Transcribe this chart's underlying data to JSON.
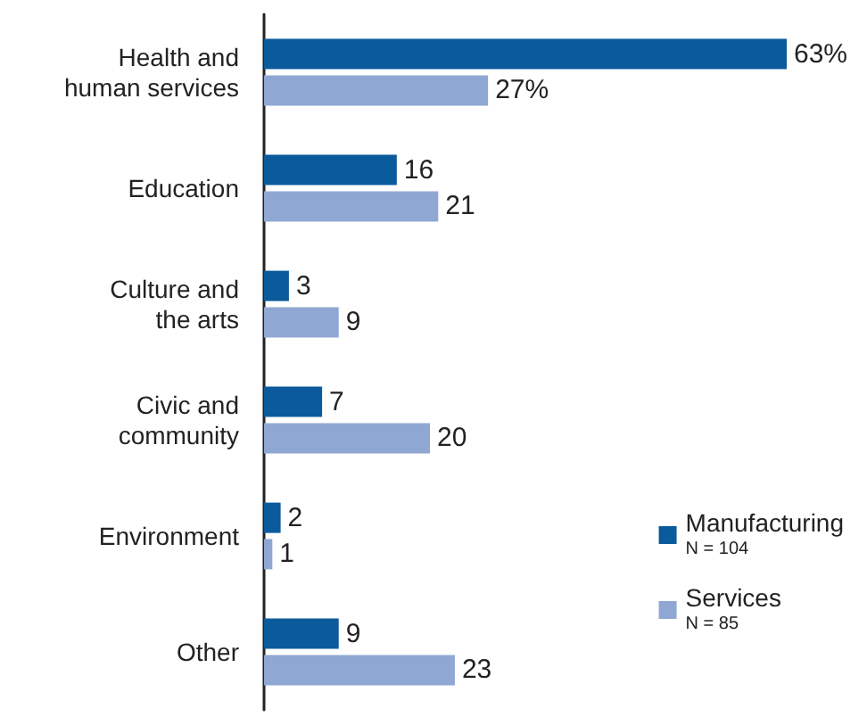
{
  "chart_data": {
    "type": "bar",
    "orientation": "horizontal",
    "categories": [
      "Health and human services",
      "Education",
      "Culture and the arts",
      "Civic and community",
      "Environment",
      "Other"
    ],
    "series": [
      {
        "name": "Manufacturing",
        "color": "#0b5a9c",
        "values": [
          63,
          16,
          3,
          7,
          2,
          9
        ],
        "value_labels": [
          "63%",
          "16",
          "3",
          "7",
          "2",
          "9"
        ]
      },
      {
        "name": "Services",
        "color": "#8fa7d3",
        "values": [
          27,
          21,
          9,
          20,
          1,
          23
        ],
        "value_labels": [
          "27%",
          "21",
          "9",
          "20",
          "1",
          "23"
        ]
      }
    ],
    "annotations": [
      "N = 104",
      "N = 85"
    ],
    "data_labels": true,
    "legend": "bottom right"
  }
}
